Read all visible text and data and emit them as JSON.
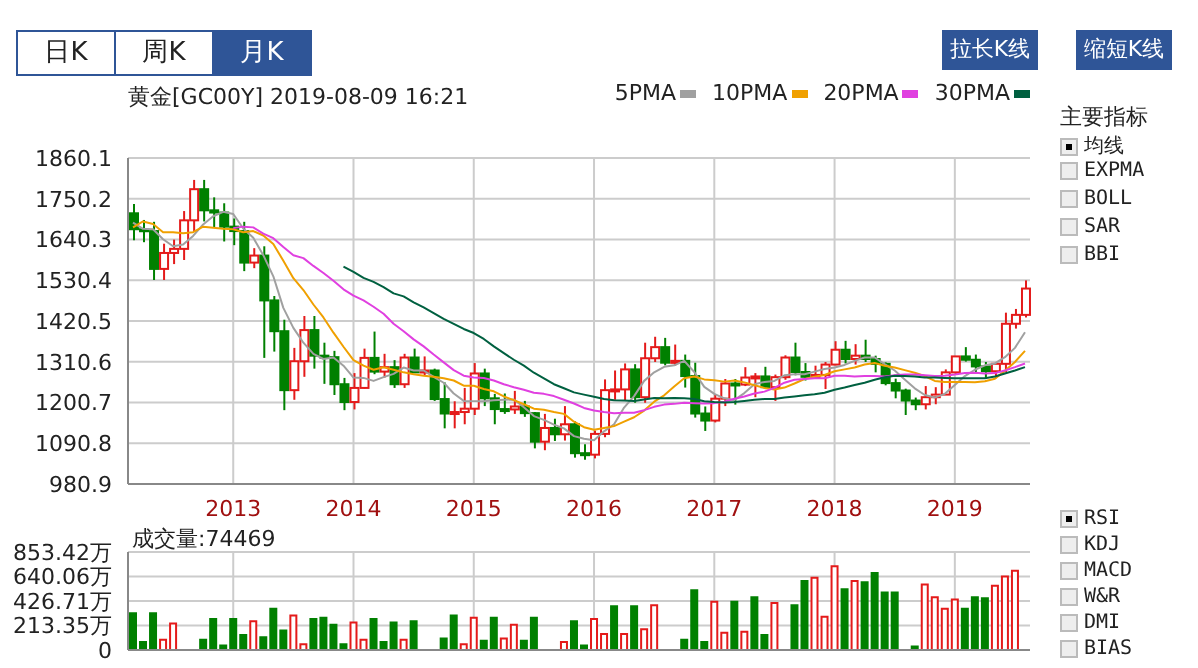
{
  "chart_data": [
    {
      "type": "candlestick",
      "title": "黄金[GC00Y] 2019-08-09 16:21",
      "categories": [
        null,
        null,
        null,
        null,
        null,
        null,
        null,
        null,
        null,
        null,
        "2013",
        null,
        null,
        null,
        null,
        null,
        null,
        null,
        null,
        null,
        null,
        null,
        "2014",
        null,
        null,
        null,
        null,
        null,
        null,
        null,
        null,
        null,
        null,
        null,
        "2015",
        null,
        null,
        null,
        null,
        null,
        null,
        null,
        null,
        null,
        null,
        null,
        "2016",
        null,
        null,
        null,
        null,
        null,
        null,
        null,
        null,
        null,
        null,
        null,
        "2017",
        null,
        null,
        null,
        null,
        null,
        null,
        null,
        null,
        null,
        null,
        null,
        "2018",
        null,
        null,
        null,
        null,
        null,
        null,
        null,
        null,
        null,
        null,
        null,
        "2019",
        null,
        null,
        null,
        null,
        null,
        null,
        null
      ],
      "ohlc": [
        [
          1711,
          1736,
          1638,
          1668
        ],
        [
          1668,
          1693,
          1633,
          1663
        ],
        [
          1663,
          1688,
          1531,
          1561
        ],
        [
          1561,
          1629,
          1531,
          1604
        ],
        [
          1604,
          1640,
          1574,
          1615
        ],
        [
          1615,
          1717,
          1585,
          1692
        ],
        [
          1692,
          1801,
          1662,
          1776
        ],
        [
          1776,
          1801,
          1689,
          1719
        ],
        [
          1719,
          1754,
          1672,
          1713
        ],
        [
          1713,
          1738,
          1635,
          1675
        ],
        [
          1675,
          1697,
          1625,
          1663
        ],
        [
          1663,
          1688,
          1555,
          1578
        ],
        [
          1578,
          1617,
          1563,
          1597
        ],
        [
          1597,
          1622,
          1321,
          1476
        ],
        [
          1476,
          1488,
          1338,
          1393
        ],
        [
          1393,
          1424,
          1180,
          1234
        ],
        [
          1234,
          1348,
          1208,
          1312
        ],
        [
          1312,
          1434,
          1270,
          1396
        ],
        [
          1396,
          1434,
          1292,
          1327
        ],
        [
          1327,
          1362,
          1251,
          1323
        ],
        [
          1323,
          1340,
          1221,
          1250
        ],
        [
          1250,
          1267,
          1180,
          1202
        ],
        [
          1202,
          1280,
          1182,
          1240
        ],
        [
          1240,
          1346,
          1238,
          1321
        ],
        [
          1321,
          1392,
          1277,
          1284
        ],
        [
          1284,
          1332,
          1268,
          1296
        ],
        [
          1296,
          1315,
          1240,
          1250
        ],
        [
          1250,
          1332,
          1240,
          1322
        ],
        [
          1322,
          1346,
          1280,
          1282
        ],
        [
          1282,
          1325,
          1273,
          1287
        ],
        [
          1287,
          1292,
          1205,
          1210
        ],
        [
          1210,
          1255,
          1131,
          1171
        ],
        [
          1171,
          1204,
          1131,
          1175
        ],
        [
          1175,
          1240,
          1142,
          1184
        ],
        [
          1184,
          1307,
          1167,
          1279
        ],
        [
          1279,
          1292,
          1191,
          1212
        ],
        [
          1212,
          1224,
          1142,
          1183
        ],
        [
          1183,
          1225,
          1170,
          1182
        ],
        [
          1182,
          1232,
          1170,
          1190
        ],
        [
          1190,
          1205,
          1162,
          1172
        ],
        [
          1172,
          1175,
          1077,
          1095
        ],
        [
          1095,
          1170,
          1072,
          1132
        ],
        [
          1132,
          1157,
          1097,
          1115
        ],
        [
          1115,
          1191,
          1098,
          1142
        ],
        [
          1142,
          1150,
          1052,
          1064
        ],
        [
          1064,
          1088,
          1046,
          1060
        ],
        [
          1060,
          1125,
          1050,
          1116
        ],
        [
          1116,
          1263,
          1107,
          1234
        ],
        [
          1234,
          1287,
          1208,
          1236
        ],
        [
          1236,
          1306,
          1207,
          1290
        ],
        [
          1290,
          1304,
          1200,
          1215
        ],
        [
          1215,
          1362,
          1200,
          1320
        ],
        [
          1320,
          1378,
          1310,
          1350
        ],
        [
          1350,
          1375,
          1301,
          1308
        ],
        [
          1308,
          1357,
          1300,
          1313
        ],
        [
          1313,
          1330,
          1241,
          1272
        ],
        [
          1272,
          1308,
          1160,
          1171
        ],
        [
          1171,
          1190,
          1124,
          1152
        ],
        [
          1152,
          1223,
          1147,
          1211
        ],
        [
          1211,
          1264,
          1191,
          1252
        ],
        [
          1252,
          1264,
          1195,
          1249
        ],
        [
          1249,
          1296,
          1245,
          1268
        ],
        [
          1268,
          1280,
          1215,
          1271
        ],
        [
          1271,
          1297,
          1237,
          1242
        ],
        [
          1242,
          1276,
          1205,
          1269
        ],
        [
          1269,
          1328,
          1262,
          1322
        ],
        [
          1322,
          1362,
          1274,
          1283
        ],
        [
          1283,
          1307,
          1260,
          1270
        ],
        [
          1270,
          1300,
          1264,
          1275
        ],
        [
          1275,
          1310,
          1237,
          1303
        ],
        [
          1303,
          1366,
          1301,
          1343
        ],
        [
          1343,
          1367,
          1306,
          1318
        ],
        [
          1318,
          1358,
          1303,
          1327
        ],
        [
          1327,
          1370,
          1310,
          1318
        ],
        [
          1318,
          1327,
          1282,
          1305
        ],
        [
          1305,
          1309,
          1247,
          1253
        ],
        [
          1253,
          1265,
          1212,
          1233
        ],
        [
          1233,
          1238,
          1167,
          1206
        ],
        [
          1206,
          1214,
          1180,
          1196
        ],
        [
          1196,
          1245,
          1182,
          1215
        ],
        [
          1215,
          1242,
          1196,
          1222
        ],
        [
          1222,
          1290,
          1222,
          1282
        ],
        [
          1282,
          1326,
          1277,
          1325
        ],
        [
          1325,
          1350,
          1311,
          1316
        ],
        [
          1316,
          1330,
          1281,
          1298
        ],
        [
          1298,
          1310,
          1267,
          1285
        ],
        [
          1285,
          1305,
          1266,
          1305
        ],
        [
          1305,
          1443,
          1282,
          1413
        ],
        [
          1413,
          1453,
          1400,
          1437
        ],
        [
          1437,
          1530,
          1430,
          1508
        ]
      ],
      "colors": [
        "#008000",
        "#008000",
        "#008000",
        "#e41a1a",
        "#e41a1a",
        "#e41a1a",
        "#e41a1a",
        "#008000",
        "#008000",
        "#008000",
        "#008000",
        "#008000",
        "#e41a1a",
        "#008000",
        "#008000",
        "#008000",
        "#e41a1a",
        "#e41a1a",
        "#008000",
        "#008000",
        "#008000",
        "#008000",
        "#e41a1a",
        "#e41a1a",
        "#008000",
        "#e41a1a",
        "#008000",
        "#e41a1a",
        "#008000",
        "#e41a1a",
        "#008000",
        "#008000",
        "#e41a1a",
        "#e41a1a",
        "#e41a1a",
        "#008000",
        "#008000",
        "#008000",
        "#e41a1a",
        "#008000",
        "#008000",
        "#e41a1a",
        "#008000",
        "#e41a1a",
        "#008000",
        "#008000",
        "#e41a1a",
        "#e41a1a",
        "#e41a1a",
        "#e41a1a",
        "#008000",
        "#e41a1a",
        "#e41a1a",
        "#008000",
        "#e41a1a",
        "#008000",
        "#008000",
        "#008000",
        "#e41a1a",
        "#e41a1a",
        "#008000",
        "#e41a1a",
        "#e41a1a",
        "#008000",
        "#e41a1a",
        "#e41a1a",
        "#008000",
        "#008000",
        "#e41a1a",
        "#e41a1a",
        "#e41a1a",
        "#008000",
        "#e41a1a",
        "#008000",
        "#008000",
        "#008000",
        "#008000",
        "#008000",
        "#008000",
        "#e41a1a",
        "#e41a1a",
        "#e41a1a",
        "#e41a1a",
        "#008000",
        "#008000",
        "#008000",
        "#e41a1a",
        "#e41a1a",
        "#e41a1a",
        "#e41a1a"
      ],
      "series": [
        {
          "name": "5PMA",
          "type": "line",
          "color": "#a0a0a0",
          "values": [
            1686,
            1669,
            1668,
            1641,
            1622,
            1627,
            1650,
            1681,
            1703,
            1715,
            1709,
            1670,
            1645,
            1598,
            1541,
            1456,
            1402,
            1362,
            1332,
            1318,
            1322,
            1300,
            1268,
            1267,
            1259,
            1269,
            1278,
            1295,
            1287,
            1287,
            1270,
            1254,
            1225,
            1205,
            1204,
            1204,
            1207,
            1208,
            1209,
            1188,
            1164,
            1154,
            1141,
            1131,
            1110,
            1103,
            1099,
            1123,
            1142,
            1187,
            1218,
            1259,
            1282,
            1297,
            1301,
            1313,
            1283,
            1243,
            1224,
            1212,
            1207,
            1226,
            1250,
            1256,
            1259,
            1274,
            1277,
            1277,
            1284,
            1291,
            1295,
            1302,
            1313,
            1322,
            1322,
            1304,
            1287,
            1263,
            1239,
            1221,
            1214,
            1224,
            1248,
            1272,
            1289,
            1301,
            1306,
            1323,
            1348,
            1390
          ]
        },
        {
          "name": "10PMA",
          "type": "line",
          "color": "#f0a000",
          "values": [
            1673,
            1689,
            1682,
            1660,
            1660,
            1657,
            1660,
            1675,
            1672,
            1669,
            1668,
            1660,
            1663,
            1651,
            1628,
            1583,
            1536,
            1504,
            1465,
            1430,
            1389,
            1351,
            1315,
            1300,
            1289,
            1296,
            1289,
            1282,
            1277,
            1273,
            1270,
            1266,
            1260,
            1246,
            1246,
            1237,
            1231,
            1217,
            1207,
            1196,
            1184,
            1181,
            1175,
            1170,
            1149,
            1134,
            1127,
            1132,
            1137,
            1149,
            1161,
            1179,
            1203,
            1220,
            1244,
            1266,
            1271,
            1263,
            1261,
            1257,
            1260,
            1255,
            1247,
            1240,
            1236,
            1241,
            1252,
            1264,
            1270,
            1275,
            1285,
            1290,
            1295,
            1303,
            1307,
            1300,
            1295,
            1288,
            1281,
            1272,
            1259,
            1256,
            1256,
            1256,
            1255,
            1258,
            1265,
            1286,
            1310,
            1340
          ]
        },
        {
          "name": "20PMA",
          "type": "line",
          "color": "#e040e0",
          "values": [
            null,
            null,
            null,
            null,
            null,
            null,
            null,
            null,
            null,
            null,
            1671,
            1675,
            1673,
            1656,
            1644,
            1620,
            1598,
            1590,
            1569,
            1550,
            1529,
            1506,
            1489,
            1476,
            1459,
            1440,
            1413,
            1393,
            1371,
            1352,
            1330,
            1309,
            1288,
            1273,
            1268,
            1267,
            1260,
            1250,
            1242,
            1235,
            1227,
            1224,
            1218,
            1208,
            1198,
            1186,
            1179,
            1175,
            1172,
            1173,
            1173,
            1180,
            1189,
            1195,
            1197,
            1200,
            1199,
            1198,
            1199,
            1203,
            1211,
            1217,
            1225,
            1230,
            1240,
            1254,
            1262,
            1264,
            1266,
            1266,
            1273,
            1273,
            1271,
            1272,
            1272,
            1271,
            1274,
            1276,
            1276,
            1274,
            1272,
            1273,
            1276,
            1280,
            1281,
            1279,
            1280,
            1287,
            1296,
            1306
          ]
        },
        {
          "name": "30PMA",
          "type": "line",
          "color": "#006040",
          "values": [
            null,
            null,
            null,
            null,
            null,
            null,
            null,
            null,
            null,
            null,
            null,
            null,
            null,
            null,
            null,
            null,
            null,
            null,
            null,
            null,
            null,
            1567,
            1553,
            1537,
            1526,
            1512,
            1495,
            1487,
            1471,
            1457,
            1442,
            1426,
            1413,
            1399,
            1388,
            1372,
            1352,
            1334,
            1316,
            1300,
            1281,
            1266,
            1250,
            1239,
            1228,
            1222,
            1216,
            1210,
            1207,
            1206,
            1205,
            1209,
            1213,
            1212,
            1213,
            1212,
            1210,
            1204,
            1202,
            1201,
            1202,
            1205,
            1208,
            1210,
            1210,
            1214,
            1217,
            1220,
            1223,
            1227,
            1235,
            1241,
            1248,
            1254,
            1262,
            1269,
            1273,
            1272,
            1271,
            1268,
            1268,
            1267,
            1266,
            1266,
            1266,
            1266,
            1271,
            1279,
            1287,
            1296
          ]
        }
      ],
      "ylim": [
        980.9,
        1860.1
      ],
      "yticks": [
        980.9,
        1090.8,
        1200.7,
        1310.6,
        1420.5,
        1530.4,
        1640.3,
        1750.2,
        1860.1
      ],
      "grid": true,
      "legend": "top right",
      "annotations": [
        "日K",
        "周K",
        "月K",
        "拉长K线",
        "缩短K线",
        "主要指标",
        "均线",
        "EXPMA",
        "BOLL",
        "SAR",
        "BBI"
      ]
    },
    {
      "type": "bar",
      "title": "成交量:74469",
      "categories": [
        null,
        null,
        null,
        null,
        null,
        null,
        null,
        null,
        null,
        null,
        "2013",
        null,
        null,
        null,
        null,
        null,
        null,
        null,
        null,
        null,
        null,
        null,
        "2014",
        null,
        null,
        null,
        null,
        null,
        null,
        null,
        null,
        null,
        null,
        null,
        "2015",
        null,
        null,
        null,
        null,
        null,
        null,
        null,
        null,
        null,
        null,
        null,
        "2016",
        null,
        null,
        null,
        null,
        null,
        null,
        null,
        null,
        null,
        null,
        null,
        "2017",
        null,
        null,
        null,
        null,
        null,
        null,
        null,
        null,
        null,
        null,
        null,
        "2018",
        null,
        null,
        null,
        null,
        null,
        null,
        null,
        null,
        null,
        null,
        null,
        "2019",
        null,
        null,
        null,
        null,
        null,
        null,
        null
      ],
      "values": [
        320,
        70,
        320,
        90,
        230,
        0,
        0,
        90,
        270,
        40,
        270,
        130,
        250,
        110,
        360,
        170,
        300,
        50,
        270,
        280,
        220,
        50,
        240,
        90,
        270,
        70,
        240,
        90,
        250,
        0,
        0,
        100,
        300,
        50,
        280,
        80,
        280,
        100,
        220,
        80,
        280,
        0,
        0,
        70,
        250,
        40,
        270,
        140,
        380,
        140,
        380,
        180,
        390,
        0,
        0,
        90,
        520,
        70,
        420,
        150,
        420,
        160,
        460,
        130,
        410,
        0,
        390,
        600,
        630,
        290,
        730,
        530,
        600,
        590,
        670,
        500,
        500,
        0,
        30,
        570,
        460,
        360,
        440,
        360,
        460,
        450,
        560,
        640,
        690,
        0
      ],
      "colors": [
        "#008000",
        "#008000",
        "#008000",
        "#e41a1a",
        "#e41a1a",
        "#008000",
        "#008000",
        "#008000",
        "#008000",
        "#008000",
        "#008000",
        "#008000",
        "#e41a1a",
        "#008000",
        "#008000",
        "#008000",
        "#e41a1a",
        "#e41a1a",
        "#008000",
        "#008000",
        "#008000",
        "#008000",
        "#e41a1a",
        "#e41a1a",
        "#008000",
        "#008000",
        "#008000",
        "#e41a1a",
        "#008000",
        "#008000",
        "#008000",
        "#008000",
        "#008000",
        "#e41a1a",
        "#e41a1a",
        "#008000",
        "#008000",
        "#e41a1a",
        "#e41a1a",
        "#008000",
        "#008000",
        "#008000",
        "#008000",
        "#e41a1a",
        "#008000",
        "#008000",
        "#e41a1a",
        "#e41a1a",
        "#008000",
        "#e41a1a",
        "#008000",
        "#e41a1a",
        "#e41a1a",
        "#008000",
        "#008000",
        "#008000",
        "#008000",
        "#008000",
        "#e41a1a",
        "#e41a1a",
        "#008000",
        "#e41a1a",
        "#008000",
        "#008000",
        "#e41a1a",
        "#008000",
        "#008000",
        "#008000",
        "#e41a1a",
        "#e41a1a",
        "#e41a1a",
        "#008000",
        "#e41a1a",
        "#008000",
        "#008000",
        "#008000",
        "#008000",
        "#008000",
        "#008000",
        "#e41a1a",
        "#e41a1a",
        "#e41a1a",
        "#e41a1a",
        "#008000",
        "#008000",
        "#008000",
        "#e41a1a",
        "#e41a1a",
        "#e41a1a",
        "#e41a1a"
      ],
      "ylim": [
        0,
        853.42
      ],
      "yticks": [
        0,
        {
          "value": 213.35,
          "label": "213.35万"
        },
        {
          "value": 426.71,
          "label": "426.71万"
        },
        {
          "value": 640.06,
          "label": "640.06万"
        },
        {
          "value": 853.42,
          "label": "853.42万"
        }
      ],
      "grid": true,
      "tick_labels": "y",
      "annotations": [
        "RSI",
        "KDJ",
        "MACD",
        "W&R",
        "DMI",
        "BIAS"
      ]
    }
  ]
}
